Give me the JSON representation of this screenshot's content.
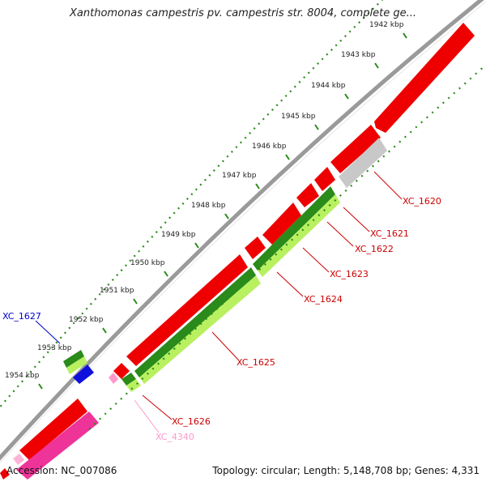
{
  "title": "Xanthomonas campestris pv. campestris str. 8004, complete ge...",
  "footer": {
    "accession": "Accession: NC_007086",
    "summary": "Topology: circular; Length: 5,148,708 bp; Genes: 4,331"
  },
  "ruler": {
    "unit": "kbp",
    "labels": [
      "1942 kbp",
      "1943 kbp",
      "1944 kbp",
      "1945 kbp",
      "1946 kbp",
      "1947 kbp",
      "1948 kbp",
      "1949 kbp",
      "1950 kbp",
      "1951 kbp",
      "1952 kbp",
      "1953 kbp",
      "1954 kbp"
    ]
  },
  "genes": [
    {
      "label": "XC_1620",
      "color": "#cc0000"
    },
    {
      "label": "XC_1621",
      "color": "#cc0000"
    },
    {
      "label": "XC_1622",
      "color": "#cc0000"
    },
    {
      "label": "XC_1623",
      "color": "#cc0000"
    },
    {
      "label": "XC_1624",
      "color": "#cc0000"
    },
    {
      "label": "XC_1625",
      "color": "#cc0000"
    },
    {
      "label": "XC_1626",
      "color": "#cc0000"
    },
    {
      "label": "XC_4340",
      "color": "#ff99cc"
    },
    {
      "label": "XC_1627",
      "color": "#0000cc"
    }
  ],
  "colors": {
    "backbone": "#999999",
    "cds_red": "#ee0000",
    "cds_grey": "#c8c8c8",
    "cds_blue": "#1010dd",
    "cds_pink": "#ee3399",
    "orf_dark_green": "#2a8a1a",
    "orf_light_green": "#b8f060",
    "ruler_green": "#2a8a1a"
  }
}
